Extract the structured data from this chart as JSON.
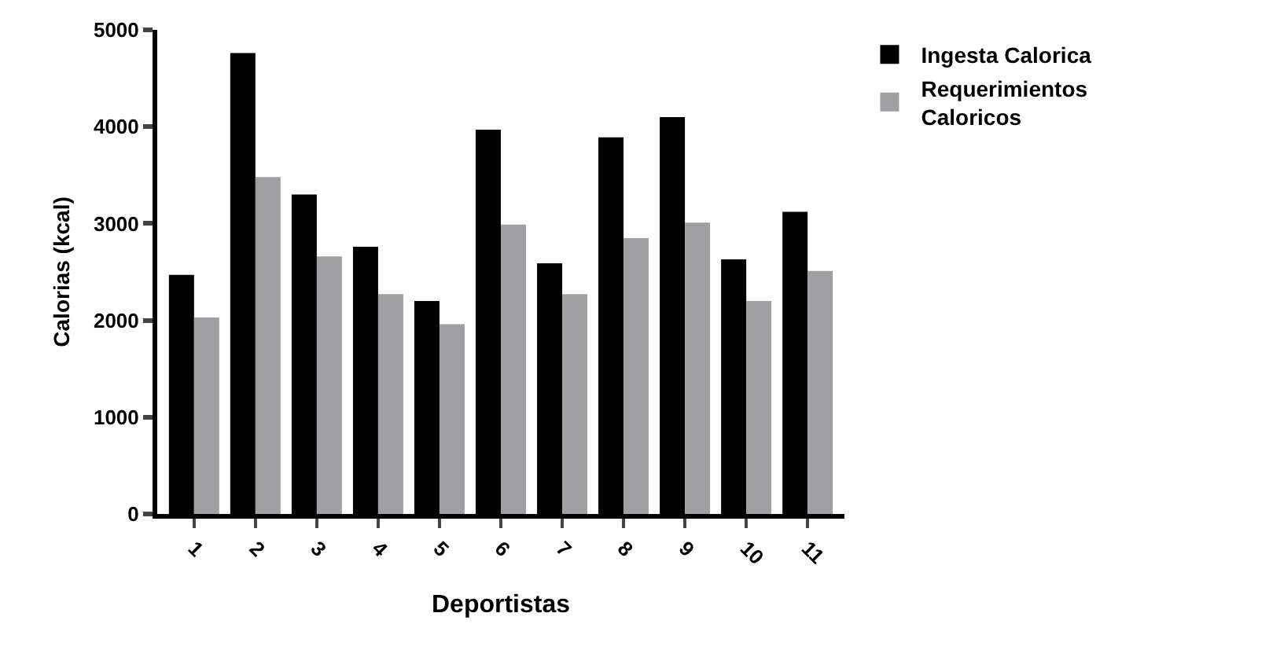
{
  "chart_data": {
    "type": "bar",
    "xlabel": "Deportistas",
    "ylabel": "Calorias (kcal)",
    "categories": [
      "1",
      "2",
      "3",
      "4",
      "5",
      "6",
      "7",
      "8",
      "9",
      "10",
      "11"
    ],
    "series": [
      {
        "name": "Ingesta Calorica",
        "color": "#000000",
        "values": [
          2470,
          4760,
          3300,
          2760,
          2200,
          3970,
          2590,
          3890,
          4100,
          2630,
          3120
        ]
      },
      {
        "name": "Requerimientos Caloricos",
        "color": "#a0a0a4",
        "values": [
          2030,
          3480,
          2660,
          2270,
          1960,
          2990,
          2270,
          2850,
          3010,
          2200,
          2510
        ]
      }
    ],
    "ylim": [
      0,
      5000
    ],
    "yticks": [
      0,
      1000,
      2000,
      3000,
      4000,
      5000
    ],
    "legend": "top right"
  }
}
